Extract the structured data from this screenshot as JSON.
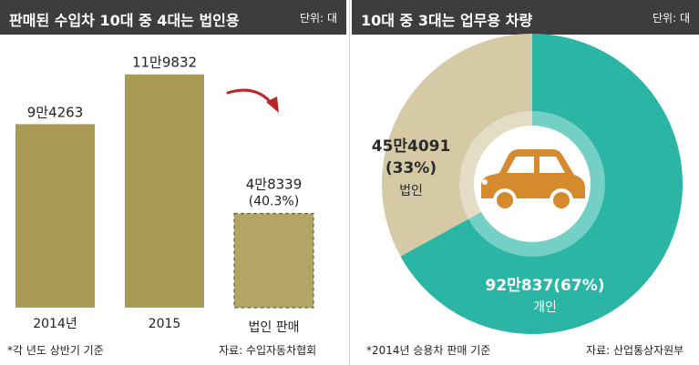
{
  "colors": {
    "bar": "#a99a55",
    "bar_dashed": "#b3a664",
    "teal": "#2ab5a5",
    "beige": "#d6c9a6",
    "car": "#d68a2e",
    "arrow": "#b8262a",
    "header_bg": "#3d3d3d"
  },
  "left": {
    "title": "판매된 수입차 10대 중 4대는 법인용",
    "unit": "단위: 대",
    "footnote": "*각 년도 상반기 기준",
    "source": "자료: 수입자동차협회"
  },
  "right": {
    "title": "10대 중 3대는 업무용 차량",
    "unit": "단위: 대",
    "footnote": "*2014년 승용차 판매 기준",
    "source": "자료: 산업통상자원부"
  },
  "chart_data": [
    {
      "type": "bar",
      "title": "판매된 수입차 10대 중 4대는 법인용",
      "categories": [
        "2014년",
        "2015",
        "법인 판매"
      ],
      "values": [
        94263,
        119832,
        48339
      ],
      "value_labels": [
        "9만4263",
        "11만9832",
        "4만8339"
      ],
      "percent_labels": [
        "",
        "",
        "(40.3%)"
      ],
      "dashed": [
        false,
        false,
        true
      ],
      "ylim": [
        0,
        130000
      ],
      "unit": "단위: 대"
    },
    {
      "type": "pie",
      "title": "10대 중 3대는 업무용 차량",
      "labels": [
        "법인",
        "개인"
      ],
      "values": [
        454091,
        920837
      ],
      "value_labels": [
        "45만4091",
        "92만837(67%)"
      ],
      "percent_labels": [
        "(33%)",
        ""
      ],
      "unit": "단위: 대"
    }
  ]
}
